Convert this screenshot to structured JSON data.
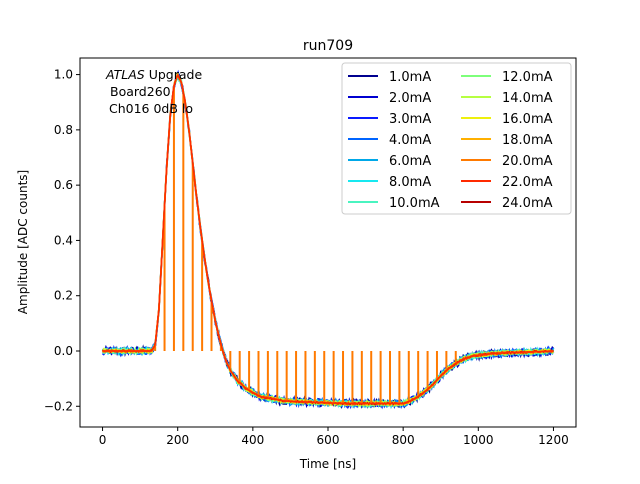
{
  "chart_data": {
    "type": "line",
    "title": "run709",
    "xlabel": "Time [ns]",
    "ylabel": "Amplitude [ADC counts]",
    "xlim": [
      -60,
      1260
    ],
    "ylim": [
      -0.275,
      1.06
    ],
    "xticks": [
      0,
      200,
      400,
      600,
      800,
      1000,
      1200
    ],
    "yticks": [
      -0.2,
      0.0,
      0.2,
      0.4,
      0.6,
      0.8,
      1.0
    ],
    "grid": false,
    "legend_position": "top-right",
    "legend_columns": 2,
    "annotation": {
      "italic": "ATLAS",
      "line1_rest": " Upgrade",
      "line2": "Board260",
      "line3": "Ch016 0dB lo"
    },
    "pulse_shape": {
      "x": [
        0,
        130,
        140,
        150,
        160,
        170,
        180,
        190,
        200,
        210,
        220,
        230,
        240,
        250,
        260,
        270,
        280,
        290,
        300,
        310,
        320,
        330,
        340,
        350,
        360,
        370,
        380,
        400,
        420,
        440,
        460,
        480,
        500,
        550,
        600,
        650,
        700,
        750,
        800,
        820,
        840,
        860,
        880,
        900,
        920,
        940,
        960,
        980,
        1000,
        1050,
        1100,
        1150,
        1200
      ],
      "y": [
        0.0,
        0.0,
        0.02,
        0.15,
        0.4,
        0.65,
        0.85,
        0.96,
        1.0,
        0.97,
        0.9,
        0.8,
        0.68,
        0.56,
        0.45,
        0.35,
        0.26,
        0.18,
        0.11,
        0.05,
        0.0,
        -0.04,
        -0.07,
        -0.09,
        -0.11,
        -0.12,
        -0.135,
        -0.15,
        -0.165,
        -0.17,
        -0.175,
        -0.18,
        -0.182,
        -0.185,
        -0.188,
        -0.19,
        -0.19,
        -0.19,
        -0.19,
        -0.18,
        -0.165,
        -0.145,
        -0.12,
        -0.09,
        -0.065,
        -0.045,
        -0.03,
        -0.02,
        -0.015,
        -0.008,
        -0.005,
        -0.003,
        0.0
      ]
    },
    "spike_series": "20.0mA",
    "spike_times": [
      140,
      165,
      190,
      215,
      240,
      265,
      290,
      315,
      340,
      365,
      390,
      415,
      440,
      465,
      490,
      515,
      540,
      565,
      590,
      615,
      640,
      665,
      690,
      715,
      740,
      765,
      790,
      815,
      840,
      865,
      890,
      915,
      940
    ],
    "series": [
      {
        "name": "1.0mA",
        "color": "#00008f"
      },
      {
        "name": "2.0mA",
        "color": "#0000d0"
      },
      {
        "name": "3.0mA",
        "color": "#0a1aff"
      },
      {
        "name": "4.0mA",
        "color": "#0064ff"
      },
      {
        "name": "6.0mA",
        "color": "#00a8e8"
      },
      {
        "name": "8.0mA",
        "color": "#17e8f0"
      },
      {
        "name": "10.0mA",
        "color": "#4af4c0"
      },
      {
        "name": "12.0mA",
        "color": "#7dff7a"
      },
      {
        "name": "14.0mA",
        "color": "#b6ff41"
      },
      {
        "name": "16.0mA",
        "color": "#eef00d"
      },
      {
        "name": "18.0mA",
        "color": "#ffb000"
      },
      {
        "name": "20.0mA",
        "color": "#ff7a00"
      },
      {
        "name": "22.0mA",
        "color": "#ff2a00"
      },
      {
        "name": "24.0mA",
        "color": "#b80000"
      }
    ]
  }
}
